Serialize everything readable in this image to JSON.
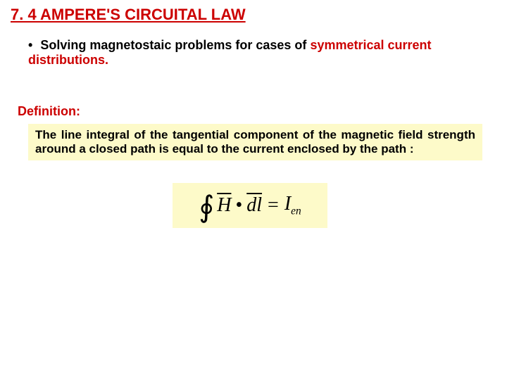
{
  "title": {
    "text": "7. 4  AMPERE'S CIRCUITAL LAW",
    "color": "#cc0000",
    "fontsize": 22
  },
  "bullet": {
    "marker": "•",
    "pre": "Solving magnetostaic problems for cases of ",
    "em1": "symmetrical",
    "mid": " ",
    "em2": "current distributions.",
    "text_color": "#000000",
    "em_color": "#cc0000",
    "fontsize": 18
  },
  "definition": {
    "label": "Definition:",
    "label_color": "#cc0000",
    "label_fontsize": 18,
    "body": "The line integral of the tangential component of the magnetic field strength around a closed path is equal to the current enclosed by the path :",
    "body_color": "#000000",
    "body_fontsize": 17,
    "box_bg": "#fdfac9"
  },
  "equation": {
    "box_bg": "#fdfac9",
    "fontsize": 28,
    "text_color": "#000000",
    "H": "H",
    "dl": "dl",
    "I": "I",
    "sub": "en"
  }
}
